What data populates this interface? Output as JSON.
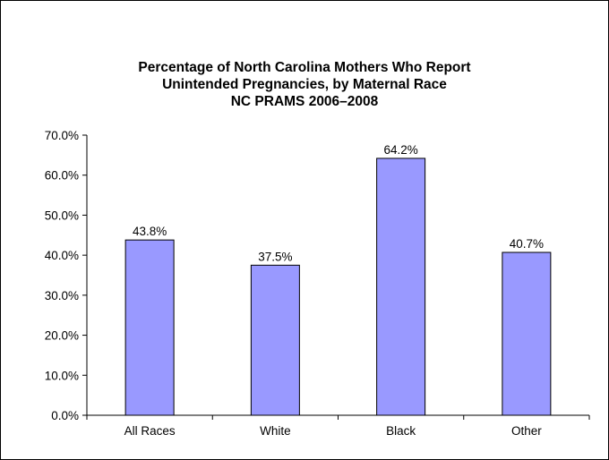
{
  "chart_data": {
    "type": "bar",
    "title_lines": [
      "Percentage of North Carolina Mothers Who Report",
      "Unintended Pregnancies, by Maternal Race",
      "NC PRAMS 2006–2008"
    ],
    "categories": [
      "All Races",
      "White",
      "Black",
      "Other"
    ],
    "values": [
      43.8,
      37.5,
      64.2,
      40.7
    ],
    "data_labels": [
      "43.8%",
      "37.5%",
      "64.2%",
      "40.7%"
    ],
    "y_ticks": [
      "0.0%",
      "10.0%",
      "20.0%",
      "30.0%",
      "40.0%",
      "50.0%",
      "60.0%",
      "70.0%"
    ],
    "ylim": [
      0,
      70
    ],
    "xlabel": "",
    "ylabel": "",
    "grid": false,
    "legend": "none",
    "colors": {
      "bar_fill": "#9999ff",
      "bar_stroke": "#000000"
    }
  }
}
